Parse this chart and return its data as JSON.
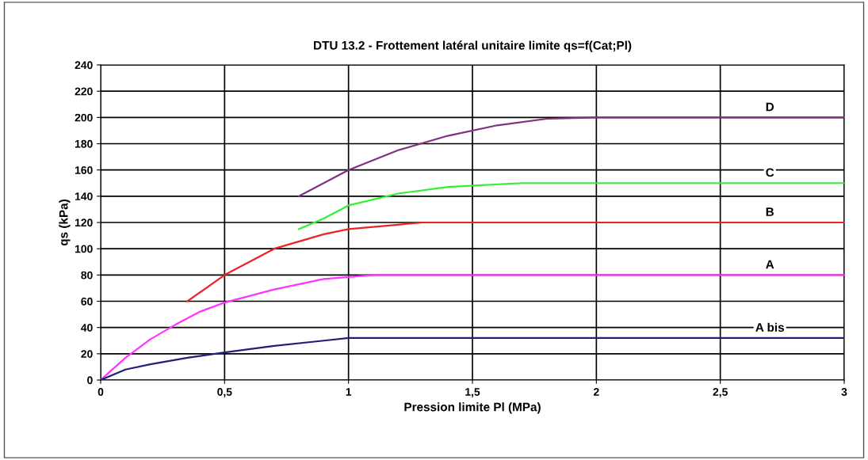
{
  "chart_data": {
    "type": "line",
    "title": "DTU 13.2 - Frottement latéral unitaire limite qs=f(Cat;Pl)",
    "xlabel": "Pression limite Pl (MPa)",
    "ylabel": "qs (kPa)",
    "xlim": [
      0,
      3
    ],
    "ylim": [
      0,
      240
    ],
    "xticks": [
      0,
      {
        "value": 0.5,
        "label": "0,5"
      },
      1,
      {
        "value": 1.5,
        "label": "1,5"
      },
      2,
      {
        "value": 2.5,
        "label": "2,5"
      },
      3
    ],
    "yticks": [
      0,
      20,
      40,
      60,
      80,
      100,
      120,
      140,
      160,
      180,
      200,
      220,
      240
    ],
    "grid": true,
    "legend": false,
    "marker": "none",
    "line_style": "solid",
    "series": [
      {
        "name": "D",
        "color": "#80307f",
        "x": [
          0.8,
          1.0,
          1.2,
          1.4,
          1.6,
          1.8,
          2.0,
          3.0
        ],
        "values": [
          140,
          160,
          175,
          186,
          194,
          199,
          200,
          200
        ]
      },
      {
        "name": "C",
        "color": "#33ee33",
        "x": [
          0.8,
          0.9,
          1.0,
          1.2,
          1.4,
          1.7,
          3.0
        ],
        "values": [
          115,
          123,
          133,
          142,
          147,
          150,
          150
        ]
      },
      {
        "name": "B",
        "color": "#ee2222",
        "x": [
          0.35,
          0.5,
          0.7,
          0.9,
          1.0,
          1.3,
          3.0
        ],
        "values": [
          60,
          80,
          100,
          111,
          115,
          120,
          120
        ]
      },
      {
        "name": "A",
        "color": "#ff33ff",
        "x": [
          0,
          0.1,
          0.2,
          0.3,
          0.4,
          0.5,
          0.7,
          0.9,
          1.1,
          3.0
        ],
        "values": [
          0,
          17,
          31,
          42,
          52,
          59,
          69,
          77,
          80,
          80
        ]
      },
      {
        "name": "A bis",
        "color": "#20207a",
        "x": [
          0,
          0.1,
          0.2,
          0.35,
          0.5,
          0.7,
          0.9,
          1.0,
          3.0
        ],
        "values": [
          0,
          8,
          12,
          17,
          21,
          26,
          30,
          32,
          32
        ]
      }
    ]
  }
}
